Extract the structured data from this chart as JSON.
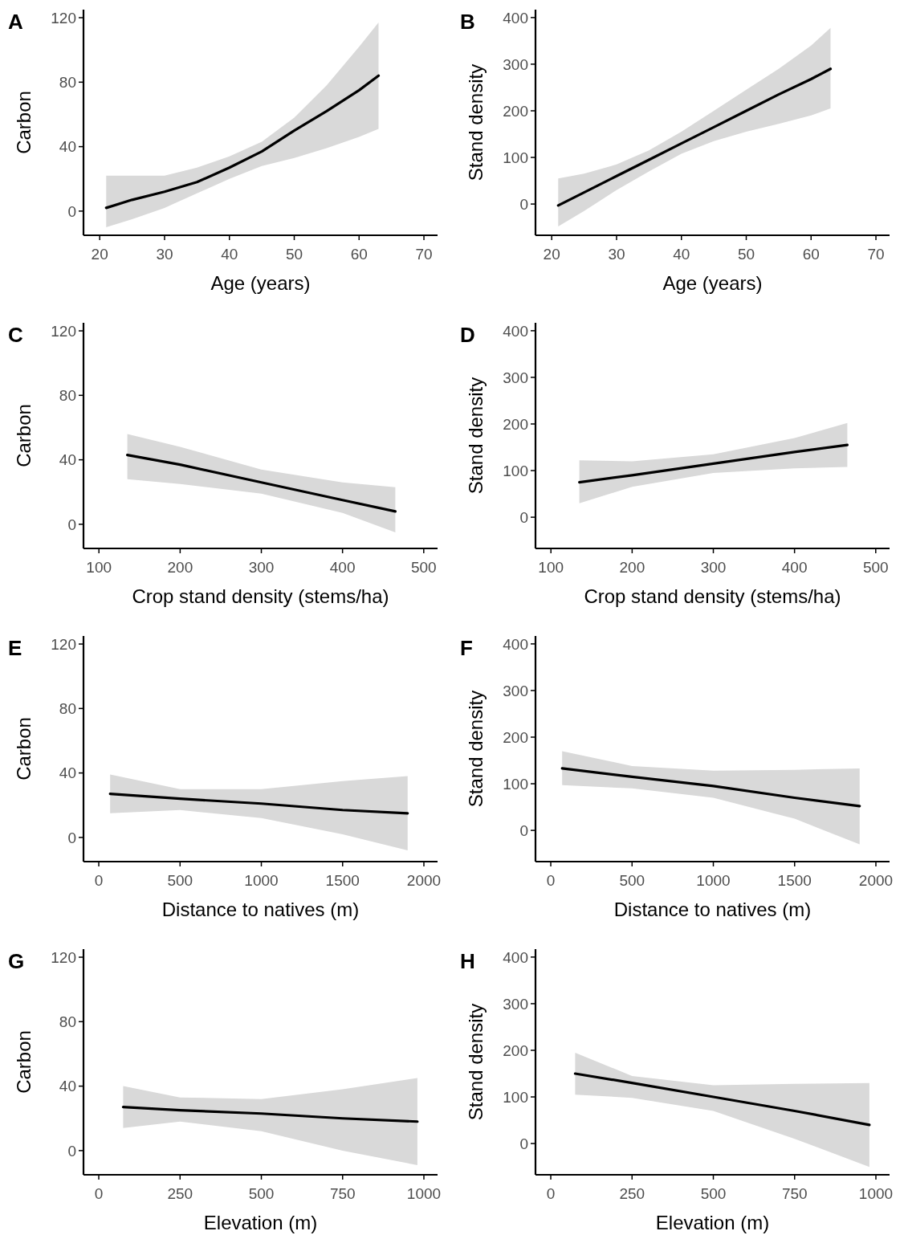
{
  "chart_data": [
    {
      "type": "line",
      "title": "A",
      "xlabel": "Age (years)",
      "ylabel": "Carbon",
      "xlim": [
        17.5,
        72.1
      ],
      "xticks": [
        20,
        30,
        40,
        50,
        60,
        70
      ],
      "ylim": [
        -15,
        125
      ],
      "yticks": [
        0,
        40,
        80,
        120
      ],
      "x": [
        21,
        25,
        30,
        35,
        40,
        45,
        50,
        55,
        60,
        63
      ],
      "series": [
        {
          "color": "#000000",
          "values": [
            2,
            7,
            12,
            18,
            27,
            37,
            50,
            62,
            75,
            84
          ],
          "lower": [
            -10,
            -5,
            2,
            11,
            20,
            28,
            33,
            39,
            46,
            51
          ],
          "upper": [
            22,
            22,
            22,
            27,
            34,
            43,
            58,
            78,
            102,
            117
          ]
        }
      ]
    },
    {
      "type": "line",
      "title": "B",
      "xlabel": "Age (years)",
      "ylabel": "Stand density",
      "xlim": [
        17.5,
        72.1
      ],
      "xticks": [
        20,
        30,
        40,
        50,
        60,
        70
      ],
      "ylim": [
        -67,
        417
      ],
      "yticks": [
        0,
        100,
        200,
        300,
        400
      ],
      "x": [
        21,
        25,
        30,
        35,
        40,
        45,
        50,
        55,
        60,
        63
      ],
      "series": [
        {
          "color": "#000000",
          "values": [
            -3,
            25,
            60,
            95,
            130,
            165,
            200,
            235,
            268,
            290
          ],
          "lower": [
            -48,
            -15,
            30,
            70,
            108,
            135,
            155,
            172,
            190,
            205
          ],
          "upper": [
            55,
            65,
            85,
            115,
            155,
            200,
            245,
            290,
            340,
            378
          ]
        }
      ]
    },
    {
      "type": "line",
      "title": "C",
      "xlabel": "Crop stand density (stems/ha)",
      "ylabel": "Carbon",
      "xlim": [
        81,
        517
      ],
      "xticks": [
        100,
        200,
        300,
        400,
        500
      ],
      "ylim": [
        -15,
        125
      ],
      "yticks": [
        0,
        40,
        80,
        120
      ],
      "x": [
        135,
        200,
        300,
        400,
        465
      ],
      "series": [
        {
          "color": "#000000",
          "values": [
            43,
            37,
            26,
            15,
            8
          ],
          "lower": [
            28,
            25,
            19,
            7,
            -5
          ],
          "upper": [
            56,
            48,
            34,
            26,
            23
          ]
        }
      ]
    },
    {
      "type": "line",
      "title": "D",
      "xlabel": "Crop stand density (stems/ha)",
      "ylabel": "Stand density",
      "xlim": [
        81,
        517
      ],
      "xticks": [
        100,
        200,
        300,
        400,
        500
      ],
      "ylim": [
        -67,
        417
      ],
      "yticks": [
        0,
        100,
        200,
        300,
        400
      ],
      "x": [
        135,
        200,
        300,
        400,
        465
      ],
      "series": [
        {
          "color": "#000000",
          "values": [
            75,
            90,
            115,
            140,
            155
          ],
          "lower": [
            30,
            65,
            95,
            105,
            108
          ],
          "upper": [
            122,
            120,
            135,
            170,
            202
          ]
        }
      ]
    },
    {
      "type": "line",
      "title": "E",
      "xlabel": "Distance to natives (m)",
      "ylabel": "Carbon",
      "xlim": [
        -94,
        2084
      ],
      "xticks": [
        0,
        500,
        1000,
        1500,
        2000
      ],
      "ylim": [
        -15,
        125
      ],
      "yticks": [
        0,
        40,
        80,
        120
      ],
      "x": [
        70,
        500,
        1000,
        1500,
        1900
      ],
      "series": [
        {
          "color": "#000000",
          "values": [
            27,
            24,
            21,
            17,
            15
          ],
          "lower": [
            15,
            17,
            12,
            2,
            -8
          ],
          "upper": [
            39,
            30,
            30,
            35,
            38
          ]
        }
      ]
    },
    {
      "type": "line",
      "title": "F",
      "xlabel": "Distance to natives (m)",
      "ylabel": "Stand density",
      "xlim": [
        -94,
        2084
      ],
      "xticks": [
        0,
        500,
        1000,
        1500,
        2000
      ],
      "ylim": [
        -67,
        417
      ],
      "yticks": [
        0,
        100,
        200,
        300,
        400
      ],
      "x": [
        70,
        500,
        1000,
        1500,
        1900
      ],
      "series": [
        {
          "color": "#000000",
          "values": [
            133,
            115,
            95,
            70,
            52
          ],
          "lower": [
            97,
            90,
            70,
            25,
            -30
          ],
          "upper": [
            170,
            138,
            128,
            130,
            133
          ]
        }
      ]
    },
    {
      "type": "line",
      "title": "G",
      "xlabel": "Elevation (m)",
      "ylabel": "Carbon",
      "xlim": [
        -47,
        1042
      ],
      "xticks": [
        0,
        250,
        500,
        750,
        1000
      ],
      "ylim": [
        -15,
        125
      ],
      "yticks": [
        0,
        40,
        80,
        120
      ],
      "x": [
        75,
        250,
        500,
        750,
        980
      ],
      "series": [
        {
          "color": "#000000",
          "values": [
            27,
            25,
            23,
            20,
            18
          ],
          "lower": [
            14,
            18,
            12,
            0,
            -9
          ],
          "upper": [
            40,
            33,
            32,
            38,
            45
          ]
        }
      ]
    },
    {
      "type": "line",
      "title": "H",
      "xlabel": "Elevation (m)",
      "ylabel": "Stand density",
      "xlim": [
        -47,
        1042
      ],
      "xticks": [
        0,
        250,
        500,
        750,
        1000
      ],
      "ylim": [
        -67,
        417
      ],
      "yticks": [
        0,
        100,
        200,
        300,
        400
      ],
      "x": [
        75,
        250,
        500,
        750,
        980
      ],
      "series": [
        {
          "color": "#000000",
          "values": [
            150,
            130,
            100,
            70,
            40
          ],
          "lower": [
            105,
            98,
            70,
            10,
            -50
          ],
          "upper": [
            195,
            145,
            125,
            128,
            130
          ]
        }
      ]
    }
  ]
}
